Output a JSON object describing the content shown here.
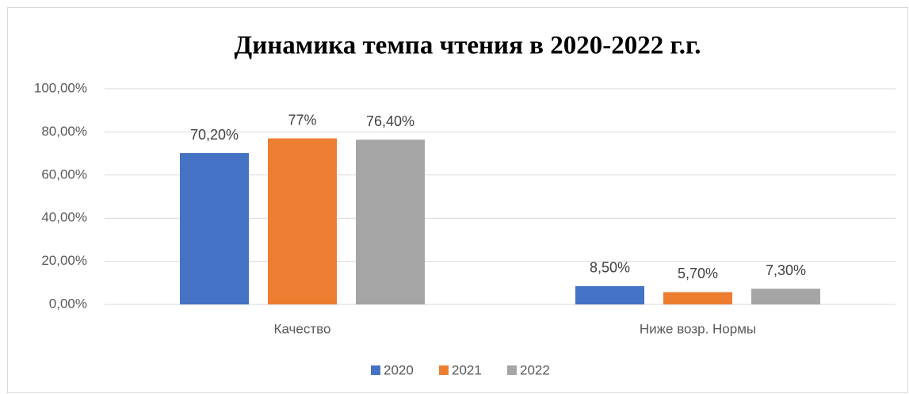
{
  "chart_data": {
    "type": "bar",
    "title": "Динамика темпа чтения в 2020-2022 г.г.",
    "categories": [
      "Качество",
      "Ниже возр. Нормы"
    ],
    "series": [
      {
        "name": "2020",
        "color": "#4472c4",
        "values": [
          70.2,
          8.5
        ],
        "value_labels": [
          "70,20%",
          "8,50%"
        ]
      },
      {
        "name": "2021",
        "color": "#ed7d31",
        "values": [
          77,
          5.7
        ],
        "value_labels": [
          "77%",
          "5,70%"
        ]
      },
      {
        "name": "2022",
        "color": "#a5a5a5",
        "values": [
          76.4,
          7.3
        ],
        "value_labels": [
          "76,40%",
          "7,30%"
        ]
      }
    ],
    "ylim": [
      0,
      100
    ],
    "yticks": [
      {
        "value": 0,
        "label": "0,00%"
      },
      {
        "value": 20,
        "label": "20,00%"
      },
      {
        "value": 40,
        "label": "40,00%"
      },
      {
        "value": 60,
        "label": "60,00%"
      },
      {
        "value": 80,
        "label": "80,00%"
      },
      {
        "value": 100,
        "label": "100,00%"
      }
    ],
    "grid": true,
    "legend": "bottom"
  }
}
